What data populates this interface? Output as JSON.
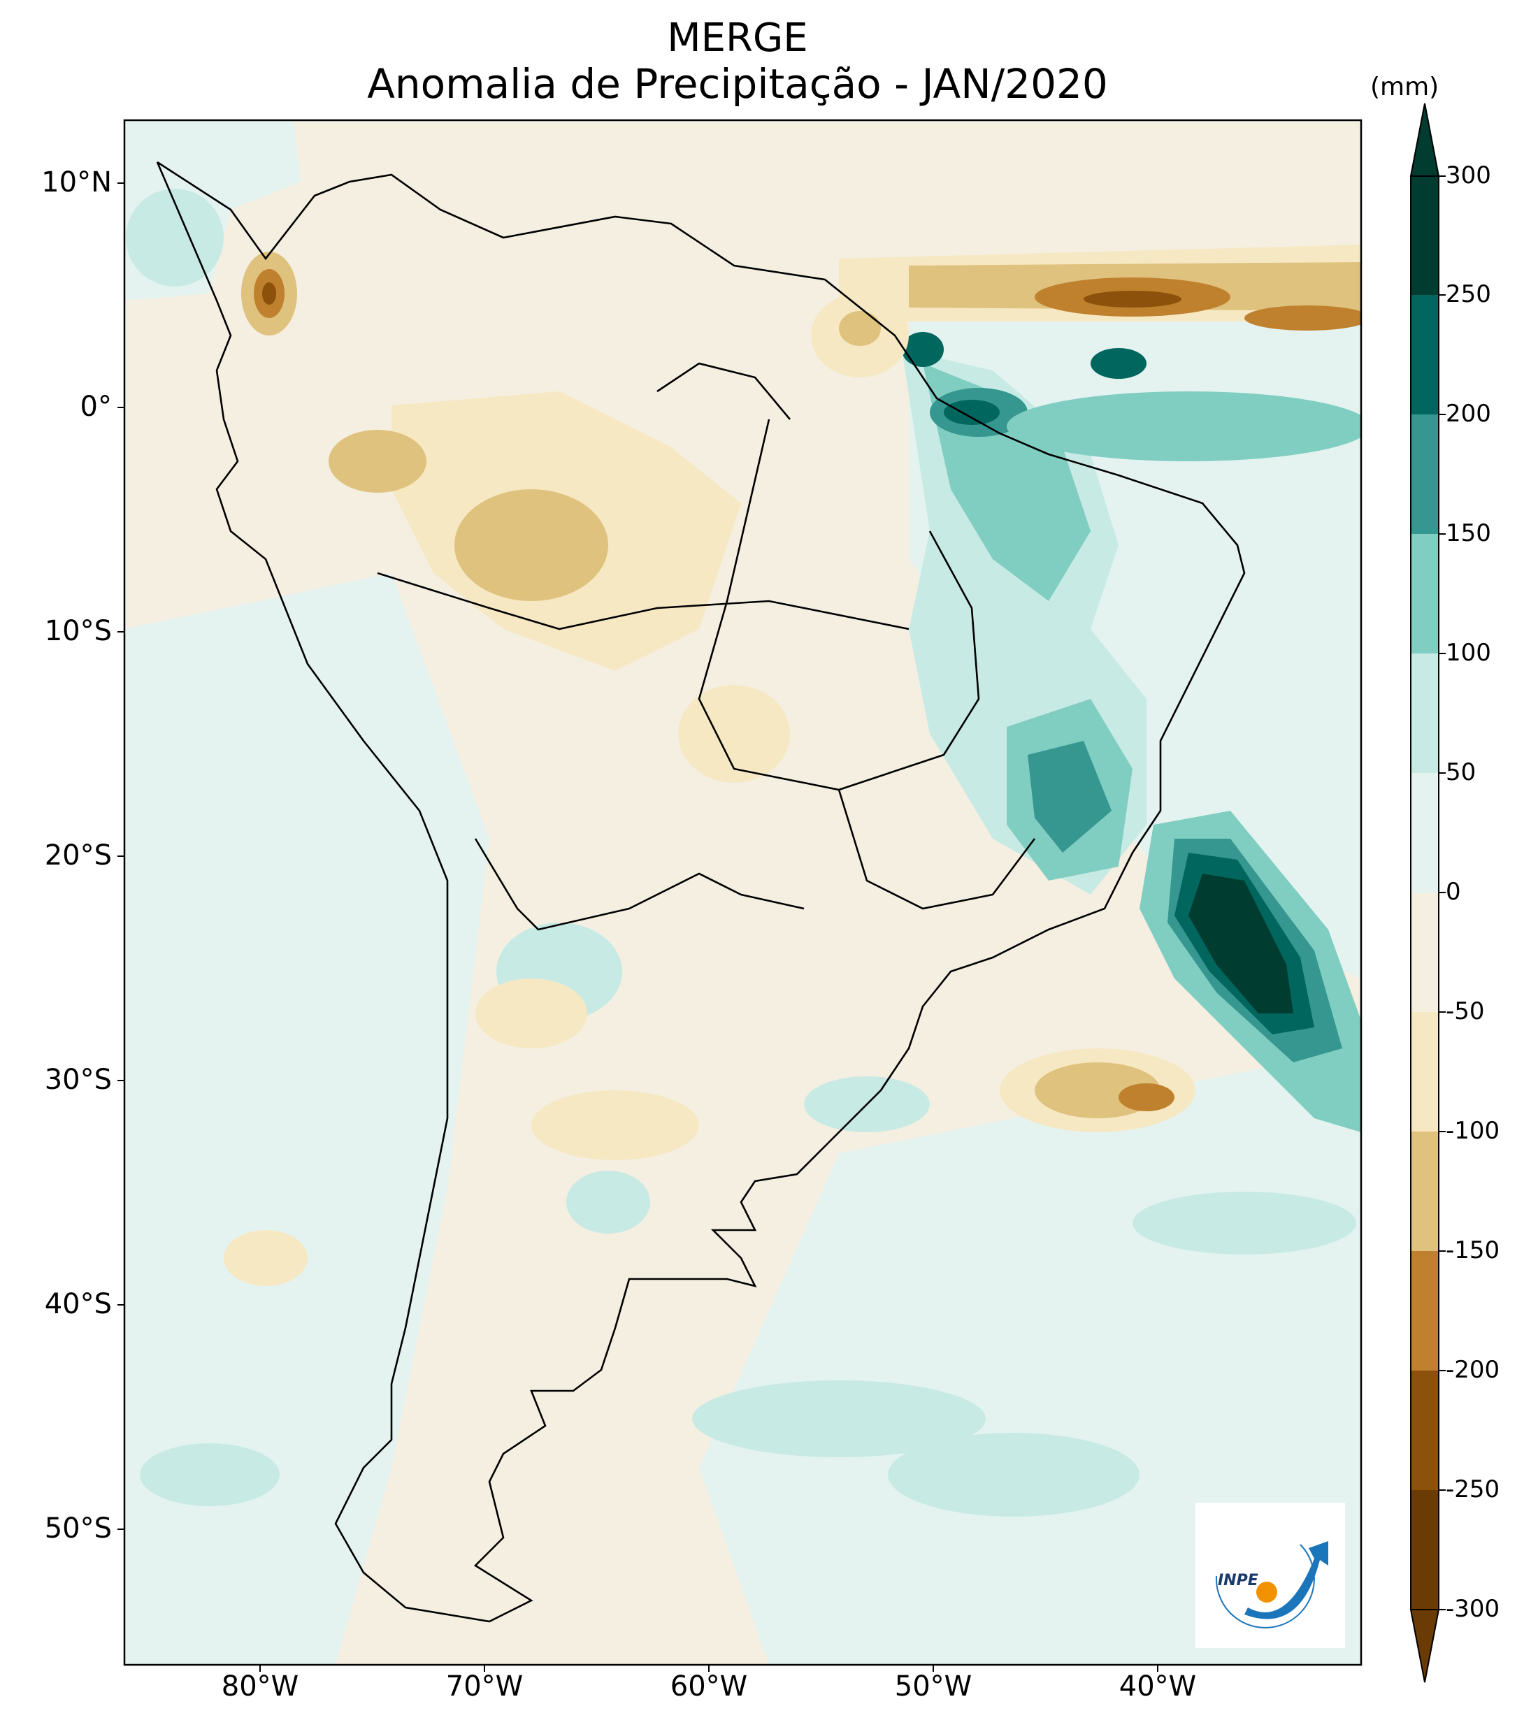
{
  "title": "MERGE",
  "subtitle": "Anomalia de Precipitação - JAN/2020",
  "colorbar": {
    "unit": "(mm)",
    "ticks": [
      "300",
      "250",
      "200",
      "150",
      "100",
      "50",
      "0",
      "-50",
      "-100",
      "-150",
      "-200",
      "-250",
      "-300"
    ],
    "colors": [
      "#003c30",
      "#01665e",
      "#35978f",
      "#80cdc1",
      "#c7eae5",
      "#e4f3f0",
      "#f5efe2",
      "#f6e8c3",
      "#dfc27d",
      "#bf812d",
      "#8c510a",
      "#6b3b06"
    ]
  },
  "axes": {
    "lat_labels": [
      "10°N",
      "0°",
      "10°S",
      "20°S",
      "30°S",
      "40°S",
      "50°S"
    ],
    "lon_labels": [
      "80°W",
      "70°W",
      "60°W",
      "50°W",
      "40°W"
    ]
  },
  "logo": {
    "text": "INPE"
  }
}
